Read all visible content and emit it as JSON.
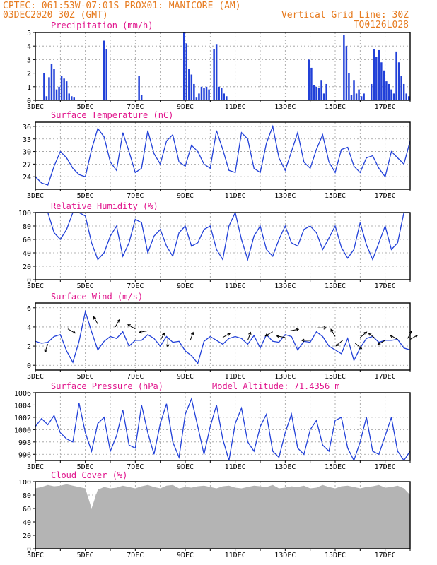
{
  "header": {
    "left_line1": "CPTEC:   061:53W-07:01S   PROX01: MANICORE (AM)",
    "left_line2": "03DEC2020 30Z (GMT)",
    "right_line1": "Vertical Grid Line: 30Z",
    "right_line2": "TQ0126L028"
  },
  "colors": {
    "header": "#e67a1e",
    "title": "#e0148c",
    "series": "#2140d8",
    "cloud": "#b4b4b4"
  },
  "x_labels": [
    "3DEC",
    "5DEC",
    "7DEC",
    "9DEC",
    "11DEC",
    "13DEC",
    "15DEC",
    "17DEC"
  ],
  "chart_data": [
    {
      "type": "bar",
      "title": "Precipitation (mm/h)",
      "ylim": [
        0,
        5
      ],
      "yticks": [
        0,
        1,
        2,
        3,
        4,
        5
      ],
      "x": [
        0.35,
        0.45,
        0.55,
        0.65,
        0.75,
        0.85,
        0.95,
        1.05,
        1.15,
        1.25,
        1.35,
        1.45,
        1.55,
        2.75,
        2.85,
        4.15,
        4.25,
        5.95,
        6.05,
        6.15,
        6.25,
        6.35,
        6.45,
        6.55,
        6.65,
        6.75,
        6.85,
        6.95,
        7.15,
        7.25,
        7.35,
        7.45,
        7.55,
        7.65,
        10.95,
        11.05,
        11.15,
        11.25,
        11.35,
        11.45,
        11.55,
        11.65,
        12.35,
        12.45,
        12.55,
        12.65,
        12.75,
        12.85,
        12.95,
        13.05,
        13.15,
        13.45,
        13.55,
        13.65,
        13.75,
        13.85,
        13.95,
        14.05,
        14.15,
        14.25,
        14.35,
        14.45,
        14.55,
        14.65,
        14.75,
        14.85,
        14.95
      ],
      "values": [
        2.0,
        0.3,
        1.7,
        2.7,
        2.3,
        0.8,
        1.0,
        1.8,
        1.6,
        1.4,
        0.5,
        0.3,
        0.2,
        4.4,
        3.8,
        1.8,
        0.4,
        5.0,
        4.2,
        2.3,
        1.9,
        1.2,
        0.2,
        0.5,
        1.0,
        0.9,
        1.0,
        0.8,
        3.8,
        4.1,
        1.0,
        0.9,
        0.5,
        0.3,
        3.0,
        2.4,
        1.1,
        1.0,
        0.9,
        1.5,
        0.5,
        1.2,
        4.8,
        4.0,
        2.0,
        0.4,
        1.5,
        0.5,
        0.8,
        0.3,
        0.5,
        1.2,
        3.8,
        3.2,
        3.7,
        2.8,
        2.2,
        1.4,
        1.2,
        0.8,
        0.5,
        3.6,
        2.8,
        1.8,
        1.2,
        0.5,
        0.3
      ]
    },
    {
      "type": "line",
      "title": "Surface Temperature (nC)",
      "ylim": [
        21,
        37
      ],
      "yticks": [
        24,
        27,
        30,
        33,
        36
      ],
      "x": [
        0,
        0.25,
        0.5,
        0.75,
        1,
        1.25,
        1.5,
        1.75,
        2,
        2.25,
        2.5,
        2.75,
        3,
        3.25,
        3.5,
        3.75,
        4,
        4.25,
        4.5,
        4.75,
        5,
        5.25,
        5.5,
        5.75,
        6,
        6.25,
        6.5,
        6.75,
        7,
        7.25,
        7.5,
        7.75,
        8,
        8.25,
        8.5,
        8.75,
        9,
        9.25,
        9.5,
        9.75,
        10,
        10.25,
        10.5,
        10.75,
        11,
        11.25,
        11.5,
        11.75,
        12,
        12.25,
        12.5,
        12.75,
        13,
        13.25,
        13.5,
        13.75,
        14,
        14.25,
        14.5,
        14.75,
        15
      ],
      "values": [
        24.0,
        22.5,
        22.0,
        26.5,
        30.0,
        28.5,
        26.0,
        24.5,
        24.0,
        30.5,
        35.5,
        33.5,
        27.5,
        25.5,
        34.5,
        30.0,
        25.0,
        26.0,
        35.0,
        29.5,
        27.0,
        32.5,
        34.0,
        27.5,
        26.5,
        31.5,
        30.0,
        27.0,
        26.0,
        35.0,
        30.5,
        25.5,
        25.0,
        34.5,
        33.0,
        26.0,
        25.0,
        32.0,
        36.0,
        28.5,
        25.5,
        30.0,
        34.5,
        27.5,
        26.0,
        30.5,
        34.0,
        27.5,
        25.0,
        30.5,
        31.0,
        26.5,
        25.0,
        28.5,
        29.0,
        26.0,
        24.0,
        30.0,
        28.5,
        27.0,
        32.5
      ]
    },
    {
      "type": "line",
      "title": "Relative Humidity (%)",
      "ylim": [
        0,
        100
      ],
      "yticks": [
        0,
        20,
        40,
        60,
        80,
        100
      ],
      "x": [
        0,
        0.25,
        0.5,
        0.75,
        1,
        1.25,
        1.5,
        1.75,
        2,
        2.25,
        2.5,
        2.75,
        3,
        3.25,
        3.5,
        3.75,
        4,
        4.25,
        4.5,
        4.75,
        5,
        5.25,
        5.5,
        5.75,
        6,
        6.25,
        6.5,
        6.75,
        7,
        7.25,
        7.5,
        7.75,
        8,
        8.25,
        8.5,
        8.75,
        9,
        9.25,
        9.5,
        9.75,
        10,
        10.25,
        10.5,
        10.75,
        11,
        11.25,
        11.5,
        11.75,
        12,
        12.25,
        12.5,
        12.75,
        13,
        13.25,
        13.5,
        13.75,
        14,
        14.25,
        14.5,
        14.75,
        15
      ],
      "values": [
        100,
        100,
        100,
        70,
        60,
        75,
        100,
        100,
        95,
        55,
        30,
        40,
        65,
        80,
        35,
        55,
        90,
        85,
        40,
        65,
        75,
        50,
        35,
        70,
        80,
        50,
        55,
        75,
        80,
        45,
        30,
        80,
        100,
        60,
        30,
        65,
        80,
        45,
        35,
        60,
        80,
        55,
        50,
        75,
        80,
        70,
        45,
        62,
        80,
        48,
        32,
        45,
        85,
        52,
        30,
        55,
        80,
        45,
        55,
        100,
        100
      ]
    },
    {
      "type": "line",
      "title": "Surface Wind (m/s)",
      "ylim": [
        -0.5,
        6.5
      ],
      "yticks": [
        0,
        2,
        4,
        6
      ],
      "x": [
        0,
        0.25,
        0.5,
        0.75,
        1,
        1.25,
        1.5,
        1.75,
        2,
        2.25,
        2.5,
        2.75,
        3,
        3.25,
        3.5,
        3.75,
        4,
        4.25,
        4.5,
        4.75,
        5,
        5.25,
        5.5,
        5.75,
        6,
        6.25,
        6.5,
        6.75,
        7,
        7.25,
        7.5,
        7.75,
        8,
        8.25,
        8.5,
        8.75,
        9,
        9.25,
        9.5,
        9.75,
        10,
        10.25,
        10.5,
        10.75,
        11,
        11.25,
        11.5,
        11.75,
        12,
        12.25,
        12.5,
        12.75,
        13,
        13.25,
        13.5,
        13.75,
        14,
        14.25,
        14.5,
        14.75,
        15
      ],
      "values": [
        2.5,
        2.3,
        2.4,
        3.0,
        3.2,
        1.5,
        0.3,
        2.5,
        5.6,
        3.5,
        1.6,
        2.5,
        3.0,
        2.8,
        3.5,
        2.0,
        2.6,
        2.6,
        3.2,
        2.8,
        2.0,
        3.0,
        2.4,
        2.5,
        1.5,
        1.0,
        0.2,
        2.5,
        3.0,
        2.6,
        2.2,
        2.8,
        3.0,
        2.8,
        2.2,
        3.1,
        1.8,
        3.2,
        2.5,
        2.4,
        3.2,
        3.0,
        1.6,
        2.5,
        2.4,
        3.5,
        3.0,
        2.0,
        1.6,
        1.2,
        2.8,
        0.5,
        1.8,
        2.8,
        3.0,
        2.4,
        2.6,
        2.6,
        2.7,
        1.8,
        1.6
      ]
    },
    {
      "type": "line",
      "title": "Surface Pressure (hPa)",
      "annotation": "Model Altitude: 71.4356 m",
      "ylim": [
        995,
        1006
      ],
      "yticks": [
        996,
        998,
        1000,
        1002,
        1004,
        1006
      ],
      "x": [
        0,
        0.25,
        0.5,
        0.75,
        1,
        1.25,
        1.5,
        1.75,
        2,
        2.25,
        2.5,
        2.75,
        3,
        3.25,
        3.5,
        3.75,
        4,
        4.25,
        4.5,
        4.75,
        5,
        5.25,
        5.5,
        5.75,
        6,
        6.25,
        6.5,
        6.75,
        7,
        7.25,
        7.5,
        7.75,
        8,
        8.25,
        8.5,
        8.75,
        9,
        9.25,
        9.5,
        9.75,
        10,
        10.25,
        10.5,
        10.75,
        11,
        11.25,
        11.5,
        11.75,
        12,
        12.25,
        12.5,
        12.75,
        13,
        13.25,
        13.5,
        13.75,
        14,
        14.25,
        14.5,
        14.75,
        15
      ],
      "values": [
        1000.5,
        1001.8,
        1000.8,
        1002.3,
        999.5,
        998.5,
        998.0,
        1004.3,
        999.5,
        996.5,
        1001.0,
        1002.0,
        996.5,
        999.0,
        1003.2,
        997.5,
        997.0,
        1004.0,
        999.5,
        996.0,
        1001.0,
        1004.2,
        998.0,
        995.5,
        1002.5,
        1005.0,
        1000.5,
        996.0,
        1000.5,
        1004.0,
        998.5,
        995.0,
        1001.0,
        1003.5,
        998.0,
        996.5,
        1000.5,
        1002.5,
        996.5,
        995.5,
        999.5,
        1002.5,
        997.0,
        996.0,
        1000.0,
        1001.5,
        997.5,
        996.5,
        1001.5,
        1002.0,
        997.0,
        995.0,
        998.0,
        1002.0,
        996.5,
        996.0,
        999.0,
        1002.0,
        996.5,
        995.0,
        996.5
      ]
    },
    {
      "type": "area",
      "title": "Cloud Cover (%)",
      "ylim": [
        0,
        100
      ],
      "yticks": [
        0,
        20,
        40,
        60,
        80,
        100
      ],
      "x": [
        0,
        0.25,
        0.5,
        0.75,
        1,
        1.25,
        1.5,
        1.75,
        2,
        2.25,
        2.5,
        2.75,
        3,
        3.25,
        3.5,
        3.75,
        4,
        4.25,
        4.5,
        4.75,
        5,
        5.25,
        5.5,
        5.75,
        6,
        6.25,
        6.5,
        6.75,
        7,
        7.25,
        7.5,
        7.75,
        8,
        8.25,
        8.5,
        8.75,
        9,
        9.25,
        9.5,
        9.75,
        10,
        10.25,
        10.5,
        10.75,
        11,
        11.25,
        11.5,
        11.75,
        12,
        12.25,
        12.5,
        12.75,
        13,
        13.25,
        13.5,
        13.75,
        14,
        14.25,
        14.5,
        14.75,
        15
      ],
      "values": [
        90,
        92,
        95,
        93,
        94,
        96,
        94,
        92,
        90,
        60,
        88,
        92,
        90,
        91,
        94,
        92,
        90,
        93,
        95,
        92,
        90,
        94,
        95,
        90,
        92,
        91,
        93,
        94,
        92,
        90,
        93,
        94,
        91,
        90,
        92,
        94,
        93,
        92,
        95,
        90,
        91,
        93,
        92,
        94,
        90,
        91,
        95,
        92,
        90,
        93,
        94,
        92,
        90,
        92,
        93,
        95,
        91,
        92,
        94,
        90,
        80
      ]
    }
  ],
  "wind_vectors": {
    "x": [
      0.5,
      1.3,
      2.5,
      3.2,
      4.0,
      4.5,
      5.0,
      5.3,
      6.2,
      7.5,
      8.5,
      9.5,
      10.0,
      10.2,
      11.0,
      11.3,
      12.0,
      12.3,
      12.8,
      13.0,
      13.6,
      14.0,
      14.5,
      14.9,
      15.0
    ],
    "speed": [
      2.2,
      3.8,
      4.3,
      4.0,
      3.8,
      3.6,
      2.6,
      2.8,
      2.6,
      2.9,
      2.6,
      3.5,
      2.9,
      3.6,
      2.6,
      3.9,
      3.0,
      2.6,
      2.3,
      2.9,
      2.8,
      2.6,
      2.7,
      2.8,
      2.7
    ],
    "dir": [
      200,
      120,
      330,
      30,
      300,
      260,
      30,
      180,
      20,
      60,
      20,
      240,
      280,
      80,
      270,
      90,
      330,
      230,
      130,
      50,
      310,
      240,
      300,
      30,
      60
    ]
  }
}
